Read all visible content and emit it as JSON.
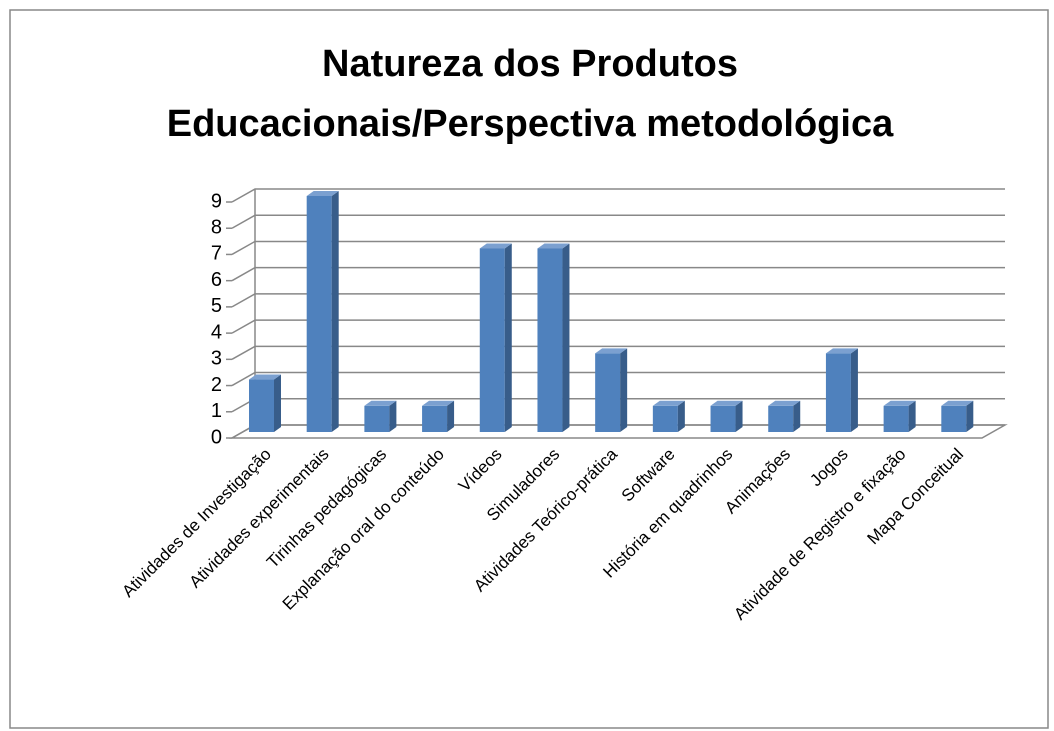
{
  "chart_data": {
    "type": "bar3d",
    "title": "Natureza dos Produtos Educacionais/Perspectiva metodológica",
    "categories": [
      "Atividades de Investigação",
      "Atividades experimentais",
      "Tirinhas pedagógicas",
      "Explanação oral do conteúdo",
      "Vídeos",
      "Simuladores",
      "Atividades Teórico-prática",
      "Software",
      "História em quadrinhos",
      "Animações",
      "Jogos",
      "Atividade de Registro e fixação",
      "Mapa Conceitual"
    ],
    "values": [
      2,
      9,
      1,
      1,
      7,
      7,
      3,
      1,
      1,
      1,
      3,
      1,
      1
    ],
    "color": "#4f81bd",
    "ylim": [
      0,
      9
    ],
    "yticks": [
      0,
      1,
      2,
      3,
      4,
      5,
      6,
      7,
      8,
      9
    ],
    "grid": true
  }
}
